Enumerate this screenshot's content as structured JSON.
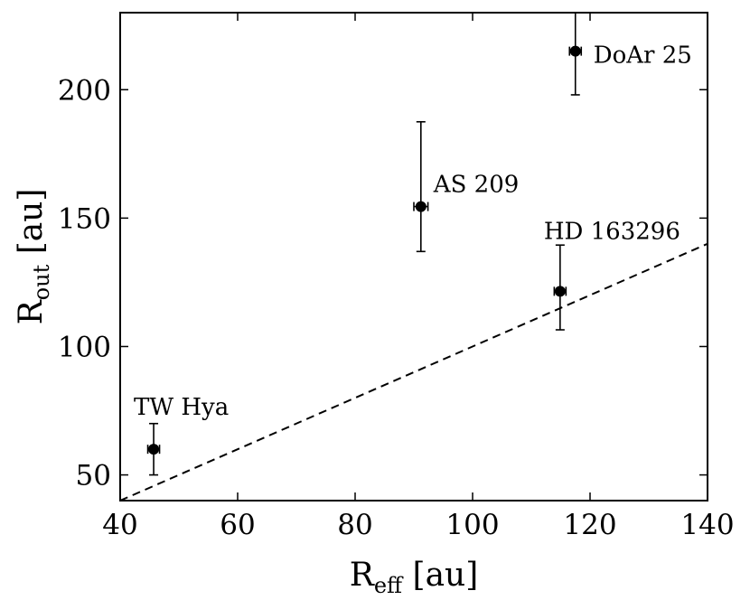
{
  "chart_data": {
    "type": "scatter",
    "title": "",
    "xlabel": {
      "main": "R",
      "sub": "eff",
      "unit": " [au]"
    },
    "ylabel": {
      "main": "R",
      "sub": "out",
      "unit": " [au]"
    },
    "xlim": [
      40,
      140
    ],
    "ylim": [
      40,
      230
    ],
    "xticks": [
      40,
      60,
      80,
      100,
      120,
      140
    ],
    "yticks": [
      50,
      100,
      150,
      200
    ],
    "grid": false,
    "legend": "none",
    "points": [
      {
        "label": "TW Hya",
        "x": 45.7,
        "y": 60,
        "x_err": 1.0,
        "y_err_low": 10,
        "y_err_high": 10
      },
      {
        "label": "AS 209",
        "x": 91.2,
        "y": 154.5,
        "x_err": 1.2,
        "y_err_low": 17.5,
        "y_err_high": 33
      },
      {
        "label": "HD 163296",
        "x": 114.9,
        "y": 121.5,
        "x_err": 1.0,
        "y_err_low": 15,
        "y_err_high": 18
      },
      {
        "label": "DoAr 25",
        "x": 117.5,
        "y": 215,
        "x_err": 1.0,
        "y_err_low": 17,
        "y_err_high": 17
      }
    ],
    "reference_line": {
      "type": "y=x",
      "style": "dashed",
      "color": "#000000"
    },
    "colors": {
      "markers": "#000000",
      "axes": "#000000",
      "background": "#ffffff"
    }
  }
}
